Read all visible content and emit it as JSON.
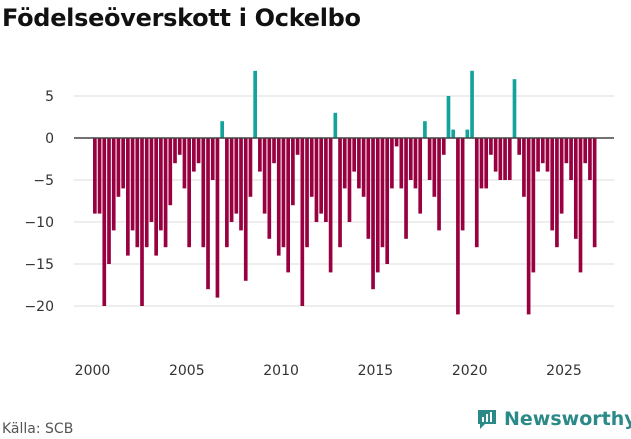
{
  "title": "Födelseöverskott i Ockelbo",
  "source": "Källa: SCB",
  "brand": {
    "name": "Newsworthy",
    "icon": "newsworthy-logo-icon"
  },
  "colors": {
    "positive": "#14a39b",
    "negative": "#98003f",
    "grid": "#dddddd",
    "zero_line": "#444444",
    "brand": "#2b8a88"
  },
  "chart_data": {
    "type": "bar",
    "title": "Födelseöverskott i Ockelbo",
    "xlabel": "",
    "ylabel": "",
    "ylim": [
      -24,
      9
    ],
    "xlim": [
      1998.5,
      2027.3
    ],
    "y_ticks": [
      5,
      0,
      -5,
      -10,
      -15,
      -20
    ],
    "y_tick_labels": [
      "5",
      "0",
      "−5",
      "−10",
      "−15",
      "−20"
    ],
    "x_ticks": [
      2000,
      2005,
      2010,
      2015,
      2020,
      2025
    ],
    "x_tick_labels": [
      "2000",
      "2005",
      "2010",
      "2015",
      "2020",
      "2025"
    ],
    "frequency": "quarterly",
    "start_year": 2000,
    "series": [
      {
        "name": "Födelseöverskott",
        "values": [
          -9,
          -9,
          -20,
          -15,
          -11,
          -7,
          -6,
          -14,
          -11,
          -13,
          -20,
          -13,
          -10,
          -14,
          -11,
          -13,
          -8,
          -3,
          -2,
          -6,
          -13,
          -4,
          -3,
          -13,
          -18,
          -5,
          -19,
          2,
          -13,
          -10,
          -9,
          -11,
          -17,
          -7,
          8,
          -4,
          -9,
          -12,
          -3,
          -14,
          -13,
          -16,
          -8,
          -2,
          -20,
          -13,
          -7,
          -10,
          -9,
          -10,
          -16,
          3,
          -13,
          -6,
          -10,
          -4,
          -6,
          -7,
          -12,
          -18,
          -16,
          -13,
          -15,
          -6,
          -1,
          -6,
          -12,
          -5,
          -6,
          -9,
          2,
          -5,
          -7,
          -11,
          -2,
          5,
          1,
          -21,
          -11,
          1,
          8,
          -13,
          -6,
          -6,
          -2,
          -4,
          -5,
          -5,
          -5,
          7,
          -2,
          -7,
          -21,
          -16,
          -4,
          -3,
          -4,
          -11,
          -13,
          -9,
          -3,
          -5,
          -12,
          -16,
          -3,
          -5,
          -13
        ]
      }
    ]
  }
}
